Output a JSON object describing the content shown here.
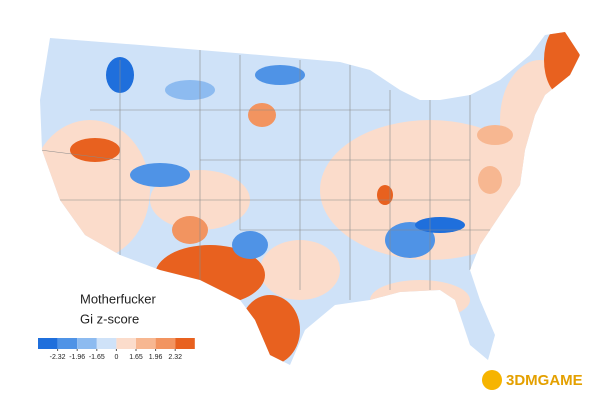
{
  "map": {
    "title": "Motherfucker",
    "subtitle": "Gi z-score",
    "legend": {
      "ticks": [
        -2.32,
        -1.96,
        -1.65,
        0,
        1.65,
        1.96,
        2.32
      ],
      "colors": [
        "#1f6fdc",
        "#4f93e6",
        "#8dbbf0",
        "#cfe2f8",
        "#fbdccb",
        "#f7b791",
        "#f29460",
        "#e8611f"
      ]
    },
    "watermark": "3DMGAME"
  }
}
